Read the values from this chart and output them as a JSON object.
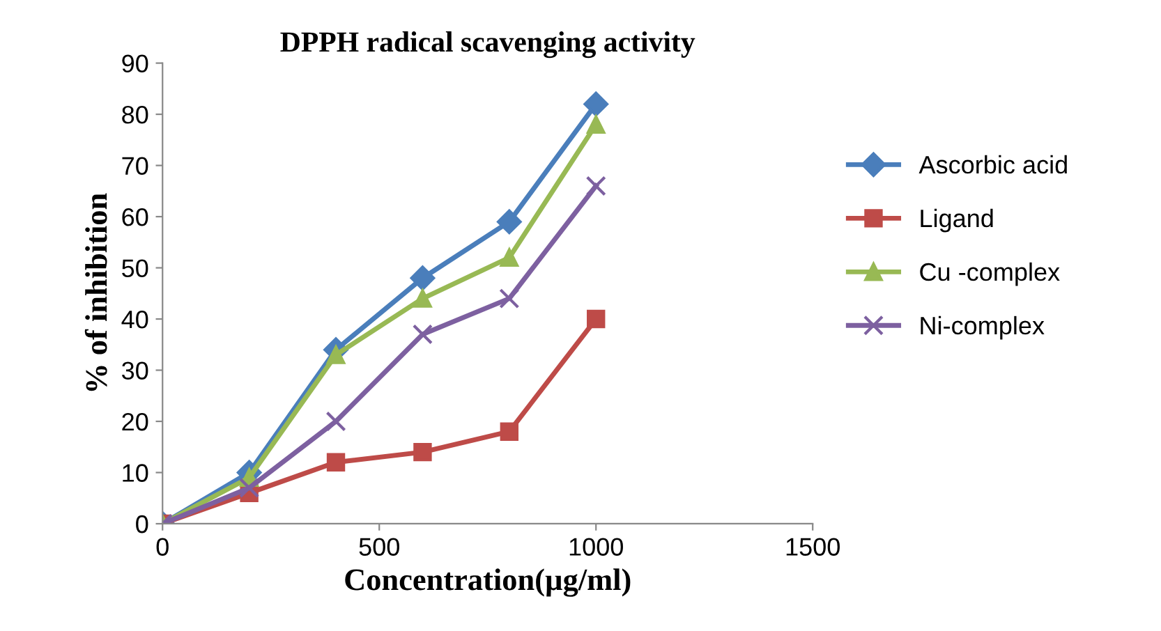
{
  "chart_data": {
    "type": "line",
    "title": "DPPH radical scavenging activity",
    "xlabel": "Concentration(µg/ml)",
    "ylabel": "% of inhibition",
    "x": [
      0,
      200,
      400,
      600,
      800,
      1000
    ],
    "series": [
      {
        "name": "Ascorbic acid",
        "color": "#4a7ebb",
        "marker": "diamond",
        "values": [
          0,
          10,
          34,
          48,
          59,
          82
        ]
      },
      {
        "name": "Ligand",
        "color": "#be4b48",
        "marker": "square",
        "values": [
          0,
          6,
          12,
          14,
          18,
          40
        ]
      },
      {
        "name": "Cu -complex",
        "color": "#98b954",
        "marker": "triangle",
        "values": [
          0,
          9,
          33,
          44,
          52,
          78
        ]
      },
      {
        "name": "Ni-complex",
        "color": "#7d60a0",
        "marker": "cross",
        "values": [
          0,
          7,
          20,
          37,
          44,
          66
        ]
      }
    ],
    "xlim": [
      0,
      1500
    ],
    "xticks": [
      0,
      500,
      1000,
      1500
    ],
    "ylim": [
      0,
      90
    ],
    "yticks": [
      0,
      10,
      20,
      30,
      40,
      50,
      60,
      70,
      80,
      90
    ],
    "grid": false,
    "legend": "right",
    "line_style": "solid"
  }
}
